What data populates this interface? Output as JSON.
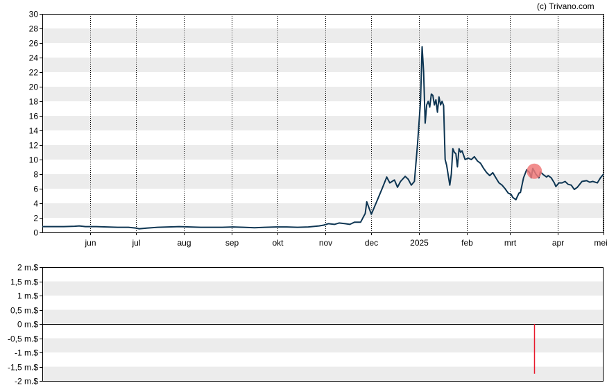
{
  "credit": "(c) Trivano.com",
  "chart_data": [
    {
      "type": "line",
      "title": "",
      "xlabel": "",
      "ylabel": "",
      "ylim": [
        0,
        30
      ],
      "yticks": [
        0,
        2,
        4,
        6,
        8,
        10,
        12,
        14,
        16,
        18,
        20,
        22,
        24,
        26,
        28,
        30
      ],
      "x_start": "2024-05-01",
      "x_end": "2025-05-01",
      "month_ticks": [
        {
          "label": "jun",
          "date": "2024-06-01"
        },
        {
          "label": "jul",
          "date": "2024-07-01"
        },
        {
          "label": "aug",
          "date": "2024-08-01"
        },
        {
          "label": "sep",
          "date": "2024-09-01"
        },
        {
          "label": "okt",
          "date": "2024-10-01"
        },
        {
          "label": "nov",
          "date": "2024-11-01"
        },
        {
          "label": "dec",
          "date": "2024-12-01"
        },
        {
          "label": "2025",
          "date": "2025-01-01"
        },
        {
          "label": "feb",
          "date": "2025-02-01"
        },
        {
          "label": "mrt",
          "date": "2025-03-01"
        },
        {
          "label": "apr",
          "date": "2025-04-01"
        },
        {
          "label": "mei",
          "date": "2025-05-01"
        }
      ],
      "grid": "horizontal bands, dotted vertical month lines",
      "line_color": "#0d3552",
      "series": [
        {
          "name": "",
          "points": [
            [
              "2024-05-01",
              0.8
            ],
            [
              "2024-05-08",
              0.8
            ],
            [
              "2024-05-15",
              0.8
            ],
            [
              "2024-05-22",
              0.85
            ],
            [
              "2024-05-25",
              0.9
            ],
            [
              "2024-05-29",
              0.8
            ],
            [
              "2024-06-05",
              0.8
            ],
            [
              "2024-06-12",
              0.75
            ],
            [
              "2024-06-19",
              0.7
            ],
            [
              "2024-06-26",
              0.7
            ],
            [
              "2024-07-01",
              0.6
            ],
            [
              "2024-07-03",
              0.5
            ],
            [
              "2024-07-08",
              0.6
            ],
            [
              "2024-07-15",
              0.7
            ],
            [
              "2024-07-22",
              0.75
            ],
            [
              "2024-07-29",
              0.8
            ],
            [
              "2024-08-05",
              0.75
            ],
            [
              "2024-08-12",
              0.7
            ],
            [
              "2024-08-19",
              0.7
            ],
            [
              "2024-08-26",
              0.7
            ],
            [
              "2024-09-02",
              0.75
            ],
            [
              "2024-09-09",
              0.7
            ],
            [
              "2024-09-16",
              0.65
            ],
            [
              "2024-09-23",
              0.7
            ],
            [
              "2024-09-30",
              0.75
            ],
            [
              "2024-10-07",
              0.75
            ],
            [
              "2024-10-14",
              0.7
            ],
            [
              "2024-10-21",
              0.75
            ],
            [
              "2024-10-28",
              0.9
            ],
            [
              "2024-10-31",
              1.0
            ],
            [
              "2024-11-03",
              1.2
            ],
            [
              "2024-11-07",
              1.1
            ],
            [
              "2024-11-10",
              1.3
            ],
            [
              "2024-11-14",
              1.2
            ],
            [
              "2024-11-17",
              1.1
            ],
            [
              "2024-11-20",
              1.4
            ],
            [
              "2024-11-24",
              1.4
            ],
            [
              "2024-11-27",
              2.6
            ],
            [
              "2024-11-28",
              4.2
            ],
            [
              "2024-12-01",
              2.5
            ],
            [
              "2024-12-04",
              4.0
            ],
            [
              "2024-12-08",
              6.0
            ],
            [
              "2024-12-11",
              7.6
            ],
            [
              "2024-12-13",
              6.8
            ],
            [
              "2024-12-16",
              7.2
            ],
            [
              "2024-12-18",
              6.2
            ],
            [
              "2024-12-20",
              7.0
            ],
            [
              "2024-12-23",
              7.7
            ],
            [
              "2024-12-25",
              7.3
            ],
            [
              "2024-12-27",
              6.5
            ],
            [
              "2024-12-29",
              7.0
            ],
            [
              "2024-12-31",
              12.0
            ],
            [
              "2025-01-02",
              18.0
            ],
            [
              "2025-01-03",
              25.5
            ],
            [
              "2025-01-04",
              22.0
            ],
            [
              "2025-01-05",
              15.0
            ],
            [
              "2025-01-06",
              17.5
            ],
            [
              "2025-01-07",
              18.0
            ],
            [
              "2025-01-08",
              17.2
            ],
            [
              "2025-01-09",
              19.0
            ],
            [
              "2025-01-10",
              18.8
            ],
            [
              "2025-01-11",
              17.5
            ],
            [
              "2025-01-12",
              18.2
            ],
            [
              "2025-01-13",
              16.5
            ],
            [
              "2025-01-14",
              18.6
            ],
            [
              "2025-01-15",
              17.5
            ],
            [
              "2025-01-16",
              18.0
            ],
            [
              "2025-01-17",
              17.4
            ],
            [
              "2025-01-18",
              10.0
            ],
            [
              "2025-01-19",
              9.2
            ],
            [
              "2025-01-21",
              6.5
            ],
            [
              "2025-01-22",
              8.0
            ],
            [
              "2025-01-23",
              11.5
            ],
            [
              "2025-01-24",
              11.0
            ],
            [
              "2025-01-25",
              10.8
            ],
            [
              "2025-01-26",
              9.0
            ],
            [
              "2025-01-27",
              11.5
            ],
            [
              "2025-01-28",
              11.0
            ],
            [
              "2025-01-29",
              11.2
            ],
            [
              "2025-01-31",
              10.0
            ],
            [
              "2025-02-02",
              10.2
            ],
            [
              "2025-02-04",
              10.0
            ],
            [
              "2025-02-06",
              10.4
            ],
            [
              "2025-02-08",
              9.8
            ],
            [
              "2025-02-10",
              9.5
            ],
            [
              "2025-02-12",
              8.8
            ],
            [
              "2025-02-14",
              8.2
            ],
            [
              "2025-02-16",
              7.8
            ],
            [
              "2025-02-18",
              8.2
            ],
            [
              "2025-02-20",
              7.5
            ],
            [
              "2025-02-22",
              6.8
            ],
            [
              "2025-02-24",
              6.5
            ],
            [
              "2025-02-26",
              6.0
            ],
            [
              "2025-02-28",
              5.4
            ],
            [
              "2025-03-02",
              5.2
            ],
            [
              "2025-03-03",
              4.8
            ],
            [
              "2025-03-05",
              4.5
            ],
            [
              "2025-03-07",
              5.4
            ],
            [
              "2025-03-08",
              5.5
            ],
            [
              "2025-03-10",
              7.5
            ],
            [
              "2025-03-12",
              8.6
            ],
            [
              "2025-03-14",
              8.2
            ],
            [
              "2025-03-15",
              7.5
            ],
            [
              "2025-03-16",
              8.8
            ],
            [
              "2025-03-18",
              8.0
            ],
            [
              "2025-03-20",
              7.5
            ],
            [
              "2025-03-21",
              8.3
            ],
            [
              "2025-03-23",
              7.9
            ],
            [
              "2025-03-25",
              7.6
            ],
            [
              "2025-03-26",
              7.8
            ],
            [
              "2025-03-28",
              7.5
            ],
            [
              "2025-03-30",
              6.8
            ],
            [
              "2025-03-31",
              6.3
            ],
            [
              "2025-04-02",
              6.8
            ],
            [
              "2025-04-04",
              6.8
            ],
            [
              "2025-04-06",
              7.0
            ],
            [
              "2025-04-08",
              6.6
            ],
            [
              "2025-04-10",
              6.5
            ],
            [
              "2025-04-12",
              5.9
            ],
            [
              "2025-04-14",
              6.2
            ],
            [
              "2025-04-17",
              7.0
            ],
            [
              "2025-04-20",
              7.1
            ],
            [
              "2025-04-22",
              6.9
            ],
            [
              "2025-04-24",
              7.0
            ],
            [
              "2025-04-27",
              6.8
            ],
            [
              "2025-04-29",
              7.5
            ],
            [
              "2025-05-01",
              8.0
            ]
          ]
        }
      ],
      "highlight": {
        "date": "2025-03-17",
        "value": 8.4,
        "color": "#f07a7a"
      }
    },
    {
      "type": "bar",
      "title": "",
      "xlabel": "",
      "ylabel": "",
      "ylim": [
        -2,
        2
      ],
      "yticks": [
        {
          "value": 2,
          "label": "2 m.$"
        },
        {
          "value": 1.5,
          "label": "1,5 m.$"
        },
        {
          "value": 1,
          "label": "1 m.$"
        },
        {
          "value": 0.5,
          "label": "0,5 m.$"
        },
        {
          "value": 0,
          "label": "0 m.$"
        },
        {
          "value": -0.5,
          "label": "-0,5 m.$"
        },
        {
          "value": -1,
          "label": "-1 m.$"
        },
        {
          "value": -1.5,
          "label": "-1,5 m.$"
        },
        {
          "value": -2,
          "label": "-2 m.$"
        }
      ],
      "bar_color": "#e8192c",
      "series": [
        {
          "name": "",
          "points": [
            [
              "2025-03-17",
              -1.75
            ]
          ]
        }
      ]
    }
  ]
}
